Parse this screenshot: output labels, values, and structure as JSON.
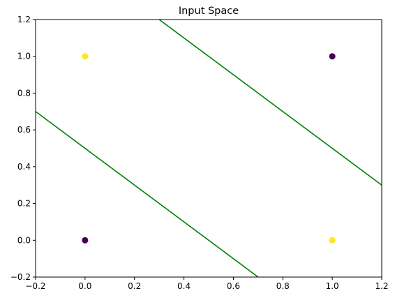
{
  "chart_data": {
    "type": "scatter",
    "title": "Input Space",
    "xlabel": "",
    "ylabel": "",
    "xlim": [
      -0.2,
      1.2
    ],
    "ylim": [
      -0.2,
      1.2
    ],
    "x_ticks": [
      -0.2,
      0.0,
      0.2,
      0.4,
      0.6,
      0.8,
      1.0,
      1.2
    ],
    "x_tick_labels": [
      "−0.2",
      "0.0",
      "0.2",
      "0.4",
      "0.6",
      "0.8",
      "1.0",
      "1.2"
    ],
    "y_ticks": [
      -0.2,
      0.0,
      0.2,
      0.4,
      0.6,
      0.8,
      1.0,
      1.2
    ],
    "y_tick_labels": [
      "−0.2",
      "0.0",
      "0.2",
      "0.4",
      "0.6",
      "0.8",
      "1.0",
      "1.2"
    ],
    "grid": false,
    "points": [
      {
        "x": 0,
        "y": 0,
        "class": 0,
        "color": "#440154"
      },
      {
        "x": 0,
        "y": 1,
        "class": 1,
        "color": "#fde725"
      },
      {
        "x": 1,
        "y": 0,
        "class": 1,
        "color": "#fde725"
      },
      {
        "x": 1,
        "y": 1,
        "class": 0,
        "color": "#440154"
      }
    ],
    "lines": [
      {
        "color": "#008000",
        "points": [
          [
            -0.2,
            0.7
          ],
          [
            0.7,
            -0.2
          ]
        ]
      },
      {
        "color": "#008000",
        "points": [
          [
            0.3,
            1.2
          ],
          [
            1.2,
            0.3
          ]
        ]
      }
    ]
  }
}
